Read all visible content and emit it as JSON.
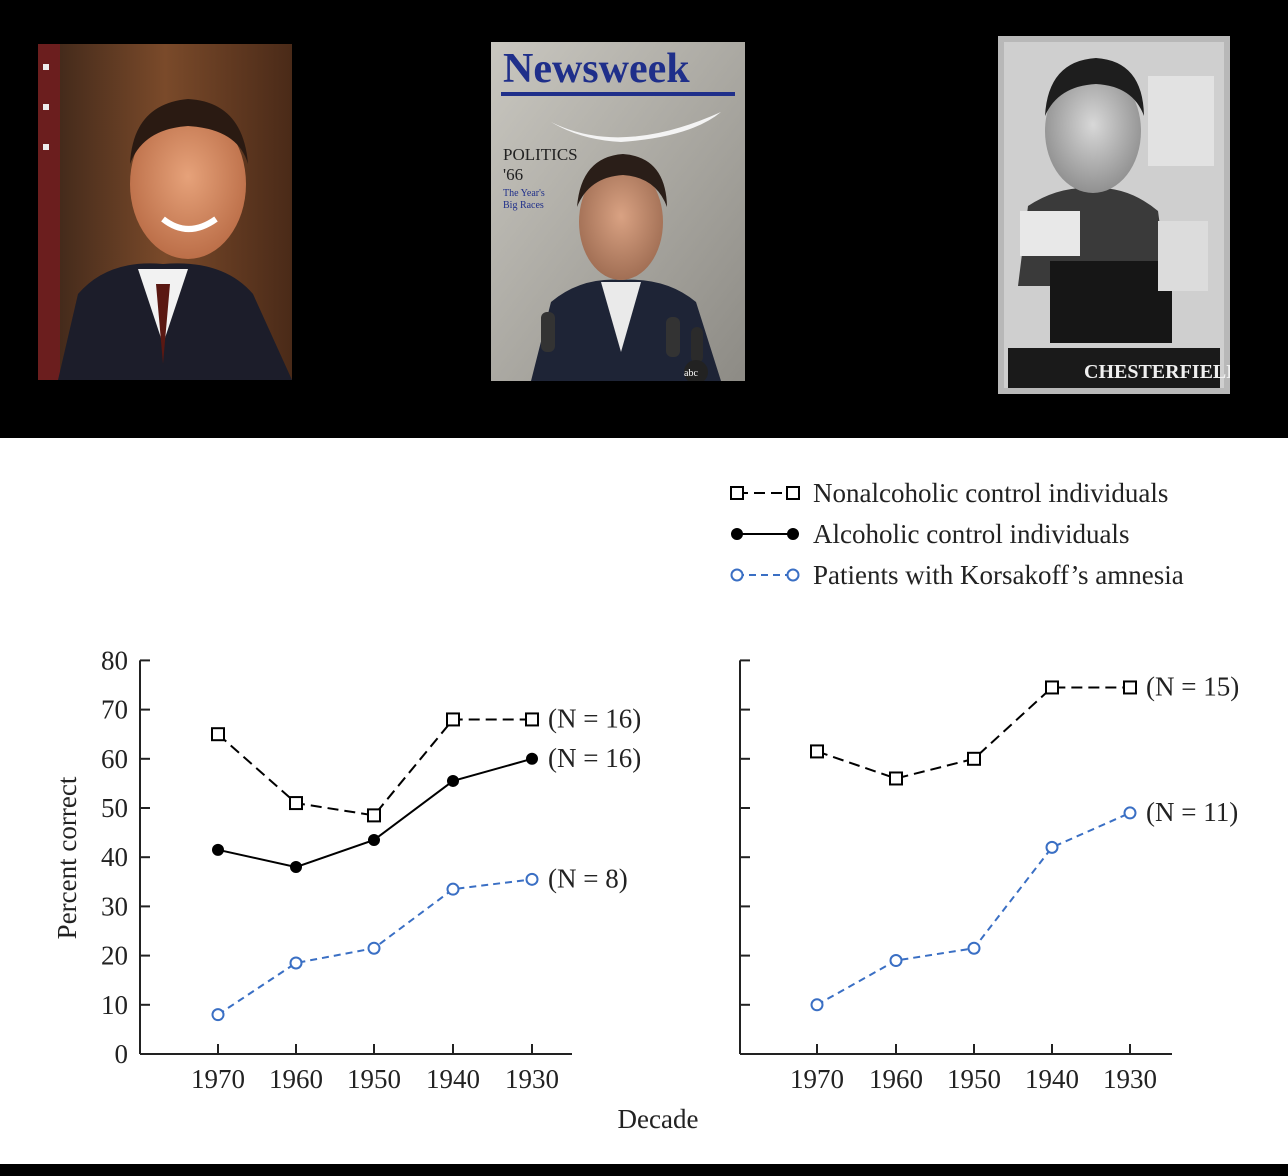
{
  "photos": [
    {
      "name": "portrait-photo"
    },
    {
      "name": "magazine-cover-photo",
      "masthead": "Newsweek",
      "headline": "POLITICS",
      "subhead": "'66",
      "teaser1": "The Year's",
      "teaser2": "Big Races",
      "network": "abc"
    },
    {
      "name": "cigarette-ad-photo",
      "brand": "CHESTERFIELD"
    }
  ],
  "legend": {
    "items": [
      {
        "label": "Nonalcoholic control individuals",
        "marker": "open-square",
        "line": "dash-long",
        "color": "#000000"
      },
      {
        "label": "Alcoholic control individuals",
        "marker": "filled-circle",
        "line": "solid",
        "color": "#000000"
      },
      {
        "label": "Patients with Korsakoff’s amnesia",
        "marker": "open-circle",
        "line": "dash-short",
        "color": "#3a6fc4"
      }
    ]
  },
  "chart_data": [
    {
      "type": "line",
      "x": [
        "1970",
        "1960",
        "1950",
        "1940",
        "1930"
      ],
      "xlabel": "Decade",
      "ylabel": "Percent correct",
      "ylim": [
        0,
        80
      ],
      "yticks": [
        "0",
        "10",
        "20",
        "30",
        "40",
        "50",
        "60",
        "70",
        "80"
      ],
      "grid": false,
      "series": [
        {
          "name": "Nonalcoholic control individuals",
          "values": [
            65,
            51,
            48.5,
            68,
            68
          ],
          "end_label": "(N = 16)"
        },
        {
          "name": "Alcoholic control individuals",
          "values": [
            41.5,
            38,
            43.5,
            55.5,
            60
          ],
          "end_label": "(N = 16)"
        },
        {
          "name": "Patients with Korsakoff’s amnesia",
          "values": [
            8,
            18.5,
            21.5,
            33.5,
            35.5
          ],
          "end_label": "(N = 8)"
        }
      ]
    },
    {
      "type": "line",
      "x": [
        "1970",
        "1960",
        "1950",
        "1940",
        "1930"
      ],
      "ylim": [
        0,
        80
      ],
      "grid": false,
      "series": [
        {
          "name": "Nonalcoholic control individuals",
          "values": [
            61.5,
            56,
            60,
            74.5,
            74.5
          ],
          "end_label": "(N = 15)"
        },
        {
          "name": "Patients with Korsakoff’s amnesia",
          "values": [
            10,
            19,
            21.5,
            42,
            49
          ],
          "end_label": "(N = 11)"
        }
      ]
    }
  ]
}
